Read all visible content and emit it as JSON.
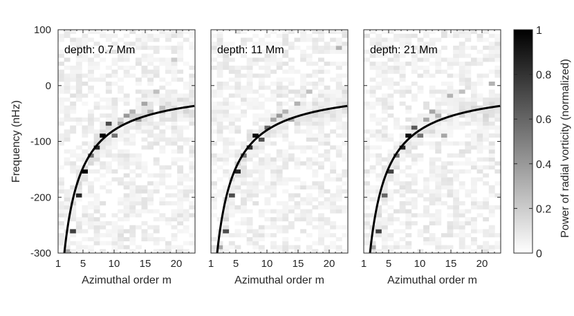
{
  "chart_data": {
    "type": "heatmap",
    "ylabel": "Frequency (nHz)",
    "xlabel": "Azimuthal order m",
    "x_range": [
      1,
      23
    ],
    "y_range": [
      -300,
      100
    ],
    "xticks": [
      "1",
      "5",
      "10",
      "15",
      "20"
    ],
    "yticks": [
      "100",
      "0",
      "-100",
      "-200",
      "-300"
    ],
    "colorbar": {
      "label": "Power of radial vorticity (normalized)",
      "range": [
        0,
        1
      ],
      "ticks": [
        "0",
        "0.2",
        "0.4",
        "0.6",
        "0.8",
        "1"
      ],
      "colormap": "white-to-black"
    },
    "panels": [
      {
        "label": "depth: 0.7 Mm",
        "peaks": [
          {
            "m": 2,
            "freq": -298,
            "power": 0.35
          },
          {
            "m": 3,
            "freq": -259,
            "power": 0.75
          },
          {
            "m": 4,
            "freq": -200,
            "power": 0.85
          },
          {
            "m": 5,
            "freq": -157,
            "power": 1.0
          },
          {
            "m": 6,
            "freq": -128,
            "power": 0.55
          },
          {
            "m": 7,
            "freq": -114,
            "power": 0.85
          },
          {
            "m": 8,
            "freq": -86,
            "power": 1.0
          },
          {
            "m": 9,
            "freq": -70,
            "power": 0.7
          },
          {
            "m": 10,
            "freq": -86,
            "power": 0.55
          },
          {
            "m": 11,
            "freq": -70,
            "power": 0.35
          },
          {
            "m": 12,
            "freq": -57,
            "power": 0.4
          },
          {
            "m": 13,
            "freq": -50,
            "power": 0.3
          },
          {
            "m": 14,
            "freq": -64,
            "power": 0.4
          },
          {
            "m": 15,
            "freq": -29,
            "power": 0.35
          },
          {
            "m": 16,
            "freq": -50,
            "power": 0.3
          },
          {
            "m": 17,
            "freq": -14,
            "power": 0.25
          },
          {
            "m": 18,
            "freq": -36,
            "power": 0.25
          },
          {
            "m": 20,
            "freq": 43,
            "power": 0.2
          }
        ]
      },
      {
        "label": "depth: 11 Mm",
        "peaks": [
          {
            "m": 2,
            "freq": -290,
            "power": 0.35
          },
          {
            "m": 3,
            "freq": -259,
            "power": 0.7
          },
          {
            "m": 4,
            "freq": -200,
            "power": 0.7
          },
          {
            "m": 5,
            "freq": -157,
            "power": 0.85
          },
          {
            "m": 6,
            "freq": -128,
            "power": 0.55
          },
          {
            "m": 7,
            "freq": -114,
            "power": 0.8
          },
          {
            "m": 8,
            "freq": -86,
            "power": 0.95
          },
          {
            "m": 9,
            "freq": -93,
            "power": 0.7
          },
          {
            "m": 10,
            "freq": -78,
            "power": 0.6
          },
          {
            "m": 11,
            "freq": -64,
            "power": 0.35
          },
          {
            "m": 12,
            "freq": -57,
            "power": 0.4
          },
          {
            "m": 13,
            "freq": -43,
            "power": 0.3
          },
          {
            "m": 14,
            "freq": -64,
            "power": 0.35
          },
          {
            "m": 15,
            "freq": -29,
            "power": 0.3
          },
          {
            "m": 17,
            "freq": -14,
            "power": 0.25
          },
          {
            "m": 22,
            "freq": 71,
            "power": 0.3
          }
        ]
      },
      {
        "label": "depth: 21 Mm",
        "peaks": [
          {
            "m": 2,
            "freq": -290,
            "power": 0.35
          },
          {
            "m": 3,
            "freq": -259,
            "power": 0.75
          },
          {
            "m": 4,
            "freq": -200,
            "power": 0.6
          },
          {
            "m": 5,
            "freq": -157,
            "power": 0.75
          },
          {
            "m": 6,
            "freq": -128,
            "power": 0.55
          },
          {
            "m": 7,
            "freq": -114,
            "power": 0.85
          },
          {
            "m": 8,
            "freq": -86,
            "power": 0.95
          },
          {
            "m": 9,
            "freq": -78,
            "power": 0.65
          },
          {
            "m": 10,
            "freq": -86,
            "power": 0.55
          },
          {
            "m": 11,
            "freq": -64,
            "power": 0.35
          },
          {
            "m": 12,
            "freq": -50,
            "power": 0.35
          },
          {
            "m": 13,
            "freq": -57,
            "power": 0.3
          },
          {
            "m": 14,
            "freq": -86,
            "power": 0.35
          },
          {
            "m": 15,
            "freq": -21,
            "power": 0.3
          },
          {
            "m": 17,
            "freq": -14,
            "power": 0.25
          },
          {
            "m": 22,
            "freq": 0,
            "power": 0.3
          }
        ]
      }
    ],
    "dispersion_curve": {
      "label": "",
      "formula": "freq = -870 / (m + 0.9) nHz"
    }
  }
}
